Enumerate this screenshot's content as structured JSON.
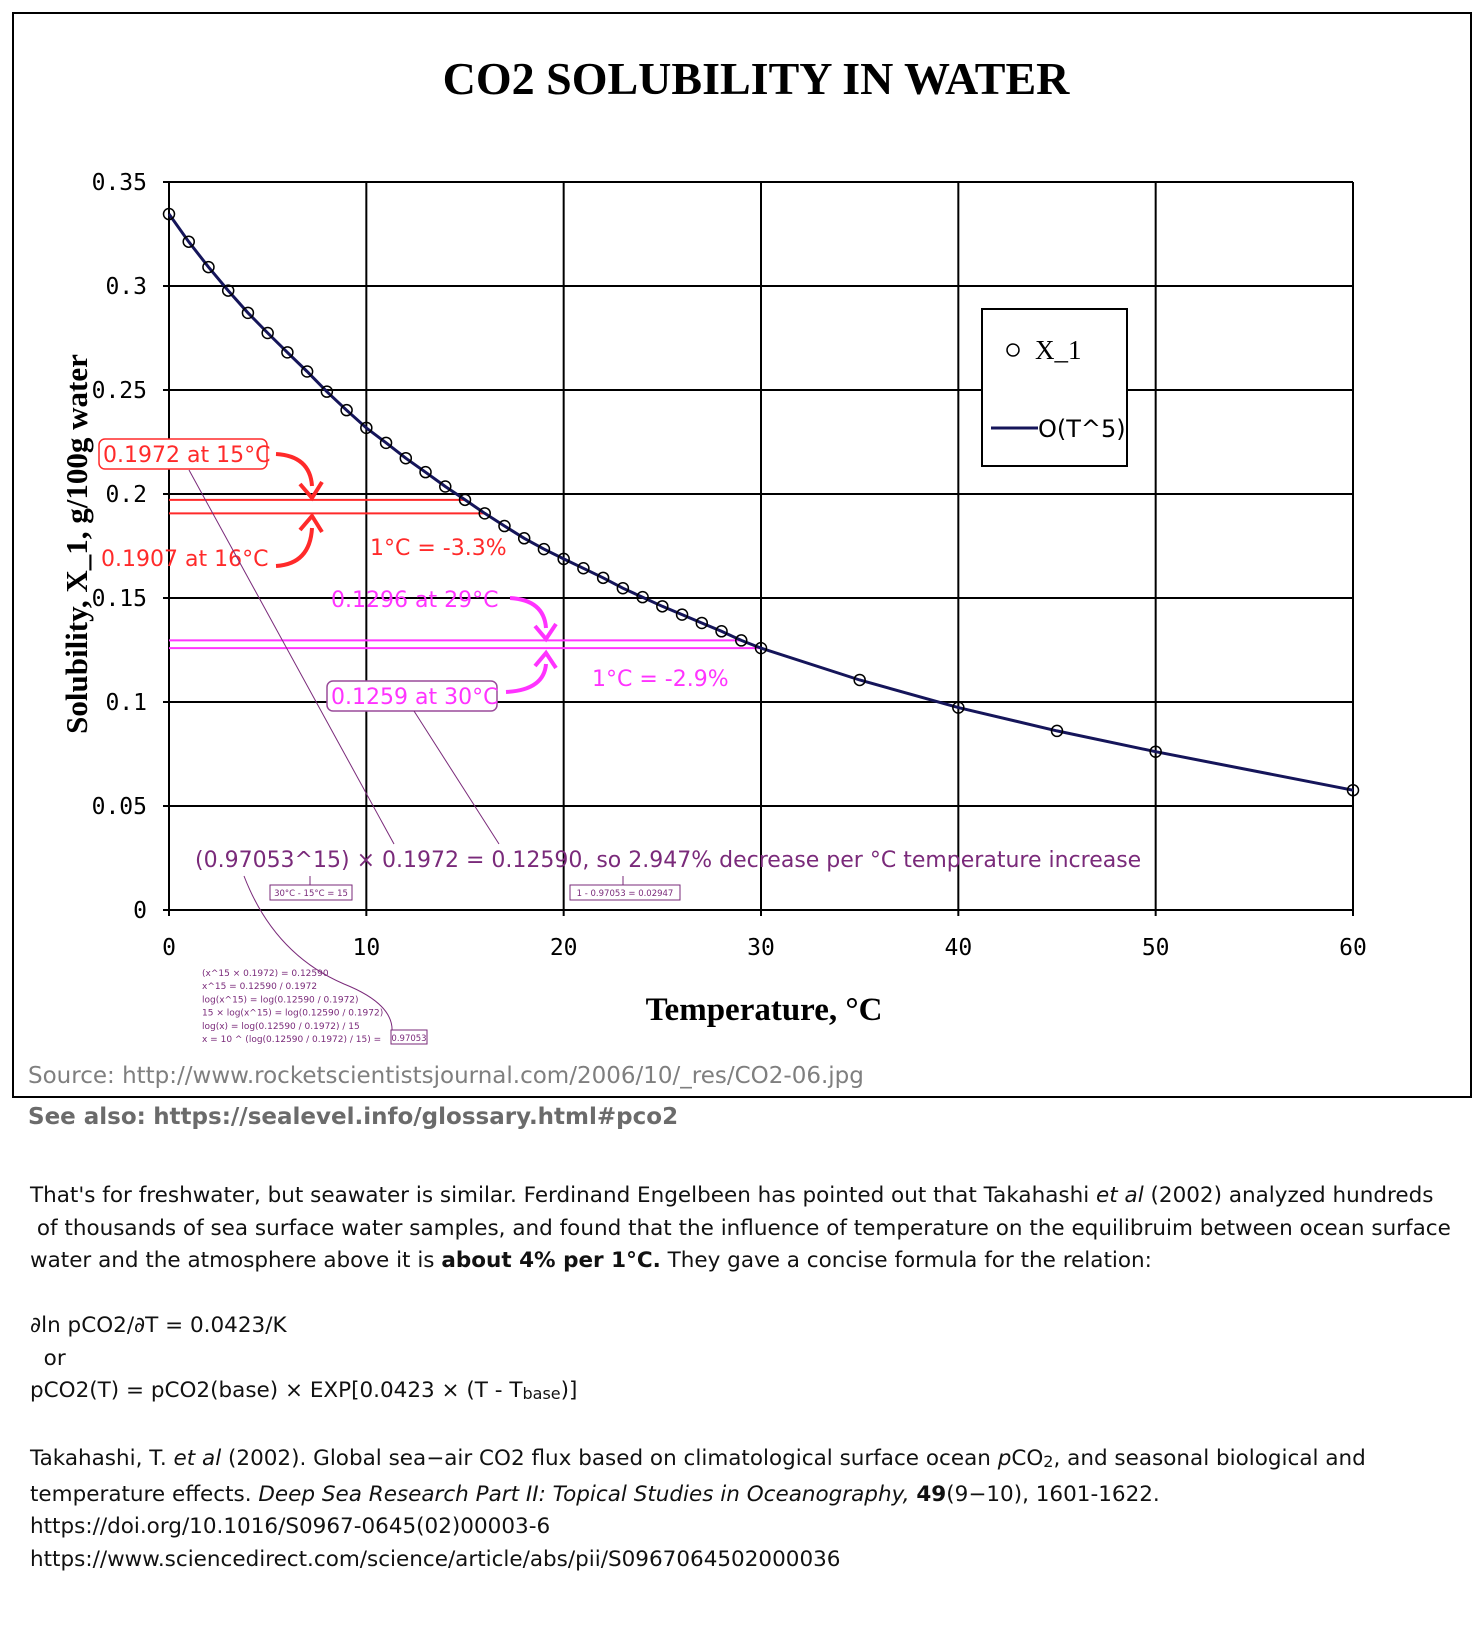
{
  "chart_data": {
    "type": "scatter",
    "title": "CO2 SOLUBILITY IN WATER",
    "xlabel": "Temperature, °C",
    "ylabel": "Solubility, X_1, g/100g water",
    "xlim": [
      0,
      60
    ],
    "ylim": [
      0,
      0.35
    ],
    "xticks": [
      0,
      10,
      20,
      30,
      40,
      50,
      60
    ],
    "xtick_labels": [
      "0",
      "10",
      "20",
      "30",
      "40",
      "50",
      "60"
    ],
    "yticks": [
      0,
      0.05,
      0.1,
      0.15,
      0.2,
      0.25,
      0.3,
      0.35
    ],
    "ytick_labels": [
      "0",
      "0.05",
      "0.1",
      "0.15",
      "0.2",
      "0.25",
      "0.3",
      "0.35"
    ],
    "grid": true,
    "legend_position": "top-right",
    "series": [
      {
        "name": "X_1",
        "kind": "markers",
        "x": [
          0,
          1,
          2,
          3,
          4,
          5,
          6,
          7,
          8,
          9,
          10,
          11,
          12,
          13,
          14,
          15,
          16,
          17,
          18,
          19,
          20,
          21,
          22,
          23,
          24,
          25,
          26,
          27,
          28,
          29,
          30,
          35,
          40,
          45,
          50,
          60
        ],
        "y": [
          0.3346,
          0.3213,
          0.3091,
          0.2978,
          0.2871,
          0.2774,
          0.2681,
          0.2589,
          0.2492,
          0.2403,
          0.2318,
          0.2246,
          0.2172,
          0.2105,
          0.2036,
          0.1972,
          0.1907,
          0.1846,
          0.1787,
          0.1735,
          0.1688,
          0.1643,
          0.1597,
          0.1547,
          0.1504,
          0.146,
          0.142,
          0.138,
          0.134,
          0.1296,
          0.1259,
          0.1106,
          0.0973,
          0.0861,
          0.0761,
          0.0576
        ]
      },
      {
        "name": "O(T^5)",
        "kind": "line",
        "color": "#15155a",
        "x": [
          0,
          1,
          2,
          3,
          4,
          5,
          6,
          7,
          8,
          9,
          10,
          11,
          12,
          13,
          14,
          15,
          16,
          17,
          18,
          19,
          20,
          21,
          22,
          23,
          24,
          25,
          26,
          27,
          28,
          29,
          30,
          35,
          40,
          45,
          50,
          60
        ],
        "y": [
          0.3346,
          0.3213,
          0.3091,
          0.2978,
          0.2871,
          0.2774,
          0.2681,
          0.2589,
          0.2492,
          0.2403,
          0.2318,
          0.2246,
          0.2172,
          0.2105,
          0.2036,
          0.1972,
          0.1907,
          0.1846,
          0.1787,
          0.1735,
          0.1688,
          0.1643,
          0.1597,
          0.1547,
          0.1504,
          0.146,
          0.142,
          0.138,
          0.134,
          0.1296,
          0.1259,
          0.1106,
          0.0973,
          0.0861,
          0.0761,
          0.0576
        ]
      }
    ],
    "reference_lines": [
      {
        "y": 0.1972,
        "x_end": 15,
        "color": "#ff2a2a"
      },
      {
        "y": 0.1907,
        "x_end": 16,
        "color": "#ff2a2a"
      },
      {
        "y": 0.1296,
        "x_end": 29,
        "color": "#ff33ff"
      },
      {
        "y": 0.1259,
        "x_end": 30,
        "color": "#ff33ff"
      }
    ],
    "annotations": {
      "red_top": "0.1972 at 15°C",
      "red_bottom": "0.1907 at 16°C",
      "red_delta": "1°C = -3.3%",
      "mag_top": "0.1296 at 29°C",
      "mag_bottom": "0.1259 at 30°C",
      "mag_delta": "1°C = -2.9%",
      "formula": "(0.97053^15) × 0.1972 = 0.12590, so 2.947% decrease per  °C temperature increase",
      "box_exp": "30°C - 15°C = 15",
      "box_pct": "1 - 0.97053 = 0.02947",
      "derivation": [
        "(x^15 × 0.1972) = 0.12590",
        "x^15 = 0.12590 / 0.1972",
        "log(x^15) = log(0.12590 / 0.1972)",
        "15 × log(x^15) = log(0.12590 / 0.1972)",
        "log(x) = log(0.12590 / 0.1972) / 15",
        "x = 10 ^ (log(0.12590 / 0.1972) / 15) ="
      ],
      "derivation_result": "0.97053"
    },
    "colors": {
      "red": "#ff2a2a",
      "magenta": "#ff33ff",
      "purple": "#7a2a7a",
      "curve": "#15155a"
    }
  },
  "source": {
    "label": "Source:",
    "url": "http://www.rocketscientistsjournal.com/2006/10/_res/CO2-06.jpg",
    "see_also_label": "See also:",
    "see_also_url": "https://sealevel.info/glossary.html#pco2"
  },
  "text": {
    "p1_a": "That's for freshwater, but seawater is similar. Ferdinand Engelbeen has pointed out that Takahashi ",
    "p1_etal": "et al",
    "p1_b": " (2002) analyzed hundreds",
    "p1_line2": " of thousands of sea surface water samples, and found that the influence of temperature on the equilibruim between ocean surface",
    "p1_line3a": "water and the atmosphere above it is ",
    "p1_bold": "about 4% per 1°C.",
    "p1_line3b": " They gave a concise formula for the relation:",
    "eq1": "∂ln pCO2/∂T = 0.0423/K",
    "or": "  or",
    "eq2a": "pCO2(T) = pCO2(base) × EXP[0.0423 × (T - T",
    "eq2sub": "base",
    "eq2b": ")]",
    "ref_a": "Takahashi, T. ",
    "ref_etal": "et al",
    "ref_b": " (2002). Global sea−air CO2 flux based on climatological surface ocean ",
    "ref_p": "p",
    "ref_c": "CO",
    "ref_csub": "2",
    "ref_d": ", and seasonal biological and",
    "ref2_a": "temperature effects. ",
    "ref2_journal": "Deep Sea Research Part II: Topical Studies in Oceanography,",
    "ref2_space": " ",
    "ref2_vol": "49",
    "ref2_b": "(9−10), 1601-1622.",
    "doi": "https://doi.org/10.1016/S0967-0645(02)00003-6",
    "sciencedirect": "https://www.sciencedirect.com/science/article/abs/pii/S0967064502000036"
  }
}
